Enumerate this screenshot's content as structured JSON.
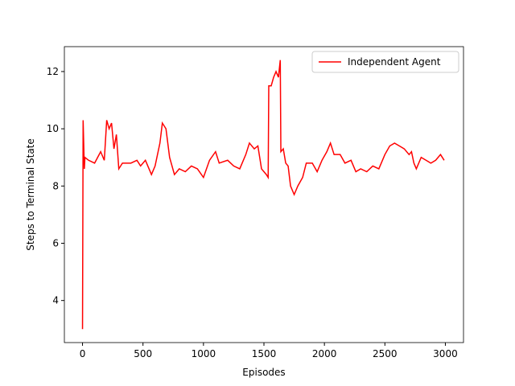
{
  "chart_data": {
    "type": "line",
    "xlabel": "Episodes",
    "ylabel": "Steps to Terminal State",
    "x": [
      0,
      5,
      15,
      20,
      50,
      100,
      150,
      180,
      200,
      220,
      240,
      260,
      280,
      300,
      330,
      400,
      450,
      480,
      520,
      570,
      600,
      640,
      660,
      690,
      720,
      760,
      800,
      850,
      900,
      950,
      1000,
      1050,
      1100,
      1130,
      1200,
      1250,
      1300,
      1350,
      1380,
      1420,
      1450,
      1480,
      1520,
      1535,
      1540,
      1560,
      1580,
      1600,
      1620,
      1635,
      1640,
      1660,
      1680,
      1700,
      1720,
      1750,
      1780,
      1820,
      1850,
      1900,
      1940,
      1980,
      2020,
      2050,
      2080,
      2130,
      2170,
      2220,
      2260,
      2300,
      2350,
      2400,
      2450,
      2480,
      2500,
      2540,
      2580,
      2620,
      2660,
      2700,
      2720,
      2740,
      2760,
      2800,
      2840,
      2880,
      2920,
      2960,
      2990
    ],
    "series": [
      {
        "name": "Independent Agent",
        "color": "#ff0000",
        "values": [
          3.0,
          10.3,
          8.6,
          9.0,
          8.9,
          8.8,
          9.2,
          8.9,
          10.3,
          10.0,
          10.2,
          9.3,
          9.8,
          8.6,
          8.8,
          8.8,
          8.9,
          8.7,
          8.9,
          8.4,
          8.7,
          9.5,
          10.2,
          10.0,
          9.0,
          8.4,
          8.6,
          8.5,
          8.7,
          8.6,
          8.3,
          8.9,
          9.2,
          8.8,
          8.9,
          8.7,
          8.6,
          9.1,
          9.5,
          9.3,
          9.4,
          8.6,
          8.4,
          8.3,
          11.5,
          11.5,
          11.8,
          12.0,
          11.8,
          12.4,
          9.2,
          9.3,
          8.8,
          8.7,
          8.0,
          7.7,
          8.0,
          8.3,
          8.8,
          8.8,
          8.5,
          8.9,
          9.2,
          9.5,
          9.1,
          9.1,
          8.8,
          8.9,
          8.5,
          8.6,
          8.5,
          8.7,
          8.6,
          8.9,
          9.1,
          9.4,
          9.5,
          9.4,
          9.3,
          9.1,
          9.2,
          8.8,
          8.6,
          9.0,
          8.9,
          8.8,
          8.9,
          9.1,
          8.9
        ]
      }
    ],
    "xlim": [
      -150,
      3150
    ],
    "ylim": [
      2.53,
      12.87
    ],
    "xticks": [
      0,
      500,
      1000,
      1500,
      2000,
      2500,
      3000
    ],
    "yticks": [
      4,
      6,
      8,
      10,
      12
    ],
    "legend": "upper right"
  }
}
